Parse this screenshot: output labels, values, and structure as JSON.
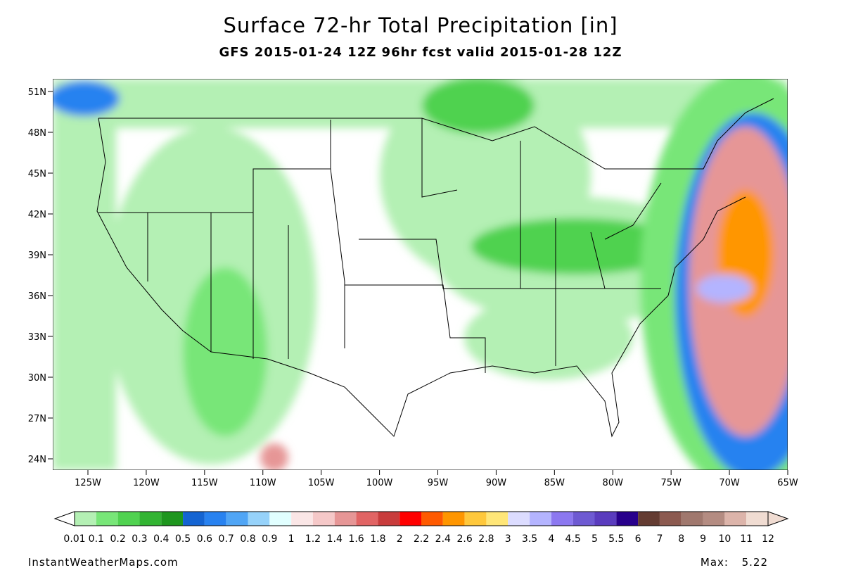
{
  "header": {
    "title": "Surface 72-hr Total Precipitation [in]",
    "subtitle": "GFS 2015-01-24 12Z 96hr fcst valid 2015-01-28 12Z"
  },
  "map": {
    "lat_labels": [
      "51N",
      "48N",
      "45N",
      "42N",
      "39N",
      "36N",
      "33N",
      "30N",
      "27N",
      "24N"
    ],
    "lon_labels": [
      "125W",
      "120W",
      "115W",
      "110W",
      "105W",
      "100W",
      "95W",
      "90W",
      "85W",
      "80W",
      "75W",
      "70W",
      "65W"
    ]
  },
  "colorbar": {
    "labels": [
      0.01,
      0.1,
      0.2,
      0.3,
      0.4,
      0.5,
      0.6,
      0.7,
      0.8,
      0.9,
      1,
      1.2,
      1.4,
      1.6,
      1.8,
      2,
      2.2,
      2.4,
      2.6,
      2.8,
      3,
      3.5,
      4,
      4.5,
      5,
      5.5,
      6,
      7,
      8,
      9,
      10,
      11,
      12
    ],
    "colors": [
      "#b4f0b4",
      "#78e678",
      "#50d250",
      "#32b432",
      "#1e961e",
      "#1464d2",
      "#2882f0",
      "#50a5f5",
      "#96d2fa",
      "#e1ffff",
      "#fae6e6",
      "#f5c8c8",
      "#e69696",
      "#e16464",
      "#c83c3c",
      "#ff0000",
      "#ff5a00",
      "#ff9600",
      "#ffc83c",
      "#ffe678",
      "#dcdcff",
      "#b4b4ff",
      "#8c78f0",
      "#6e5ad2",
      "#5a3cbe",
      "#28008c",
      "#643c32",
      "#8c5a50",
      "#a0786e",
      "#b48c82",
      "#dcb4aa",
      "#f0dcd2"
    ]
  },
  "footer": {
    "credit": "InstantWeatherMaps.com",
    "max_label": "Max:",
    "max_value": 5.22
  }
}
